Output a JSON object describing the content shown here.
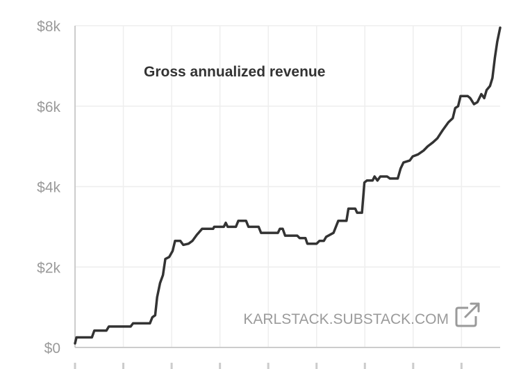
{
  "chart_data": {
    "type": "line",
    "title": "Gross annualized revenue",
    "xlabel": "",
    "ylabel": "",
    "ylim": [
      0,
      8000
    ],
    "y_ticks": [
      {
        "value": 0,
        "label": "$0"
      },
      {
        "value": 2000,
        "label": "$2k"
      },
      {
        "value": 4000,
        "label": "$4k"
      },
      {
        "value": 6000,
        "label": "$6k"
      },
      {
        "value": 8000,
        "label": "$8k"
      }
    ],
    "xlim": [
      0,
      88
    ],
    "x_gridlines": [
      0,
      10,
      20,
      30,
      40,
      50,
      60,
      70,
      80
    ],
    "grid": true,
    "series": [
      {
        "name": "Gross annualized revenue",
        "color": "#333333",
        "points": [
          [
            0,
            100
          ],
          [
            0.3,
            250
          ],
          [
            3.5,
            250
          ],
          [
            4,
            420
          ],
          [
            6.5,
            420
          ],
          [
            7,
            520
          ],
          [
            11.5,
            520
          ],
          [
            12,
            600
          ],
          [
            15.5,
            600
          ],
          [
            16,
            750
          ],
          [
            16.6,
            800
          ],
          [
            17,
            1250
          ],
          [
            17.6,
            1600
          ],
          [
            18.2,
            1800
          ],
          [
            18.7,
            2200
          ],
          [
            19.5,
            2250
          ],
          [
            20.2,
            2400
          ],
          [
            20.7,
            2650
          ],
          [
            21.8,
            2650
          ],
          [
            22.4,
            2550
          ],
          [
            23.5,
            2580
          ],
          [
            24.3,
            2650
          ],
          [
            25.2,
            2800
          ],
          [
            26.3,
            2950
          ],
          [
            28.6,
            2950
          ],
          [
            28.8,
            3000
          ],
          [
            30.8,
            3000
          ],
          [
            31.2,
            3100
          ],
          [
            31.6,
            3000
          ],
          [
            33.3,
            3000
          ],
          [
            33.8,
            3150
          ],
          [
            35.4,
            3150
          ],
          [
            35.9,
            3000
          ],
          [
            38,
            3000
          ],
          [
            38.5,
            2850
          ],
          [
            42,
            2850
          ],
          [
            42.4,
            2950
          ],
          [
            43,
            2950
          ],
          [
            43.5,
            2780
          ],
          [
            46,
            2780
          ],
          [
            46.5,
            2720
          ],
          [
            47.7,
            2720
          ],
          [
            48.1,
            2580
          ],
          [
            50,
            2580
          ],
          [
            50.6,
            2650
          ],
          [
            51.5,
            2650
          ],
          [
            52,
            2750
          ],
          [
            53.5,
            2850
          ],
          [
            54.5,
            3150
          ],
          [
            56.2,
            3150
          ],
          [
            56.6,
            3450
          ],
          [
            58,
            3450
          ],
          [
            58.4,
            3350
          ],
          [
            59.4,
            3350
          ],
          [
            59.9,
            4100
          ],
          [
            60.4,
            4150
          ],
          [
            61.6,
            4150
          ],
          [
            62,
            4250
          ],
          [
            62.6,
            4150
          ],
          [
            63.2,
            4250
          ],
          [
            64.6,
            4250
          ],
          [
            65.2,
            4200
          ],
          [
            66.8,
            4200
          ],
          [
            67.4,
            4450
          ],
          [
            68,
            4600
          ],
          [
            69.3,
            4650
          ],
          [
            69.9,
            4750
          ],
          [
            71,
            4800
          ],
          [
            72.2,
            4900
          ],
          [
            73,
            5000
          ],
          [
            74.1,
            5100
          ],
          [
            75,
            5200
          ],
          [
            76.1,
            5400
          ],
          [
            77.3,
            5600
          ],
          [
            78.2,
            5700
          ],
          [
            78.7,
            5950
          ],
          [
            79.3,
            6000
          ],
          [
            79.8,
            6250
          ],
          [
            81.3,
            6250
          ],
          [
            81.8,
            6200
          ],
          [
            82.6,
            6050
          ],
          [
            83.3,
            6100
          ],
          [
            84.1,
            6300
          ],
          [
            84.7,
            6200
          ],
          [
            85.2,
            6400
          ],
          [
            85.9,
            6500
          ],
          [
            86.4,
            6700
          ],
          [
            86.9,
            7200
          ],
          [
            87.4,
            7600
          ],
          [
            88,
            7950
          ]
        ]
      }
    ]
  },
  "watermark": {
    "text": "KARLSTACK.SUBSTACK.COM",
    "icon": "external-link-icon"
  },
  "colors": {
    "line": "#333333",
    "grid": "#eeeeee",
    "axis": "#cccccc",
    "tick_text": "#9a9a9a"
  }
}
